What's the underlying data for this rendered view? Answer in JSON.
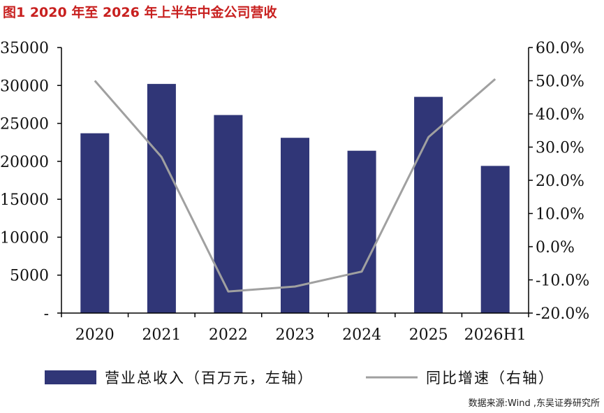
{
  "title": "图1   2020 年至 2026 年上半年中金公司营收",
  "source": "数据来源:Wind ,东吴证券研究所",
  "colors": {
    "bar": "#303677",
    "line": "#a0a0a0",
    "title": "#c8201f"
  },
  "chart_data": {
    "type": "bar+line",
    "categories": [
      "2020",
      "2021",
      "2022",
      "2023",
      "2024",
      "2025",
      "2026H1"
    ],
    "series": [
      {
        "name": "营业总收入（百万元，左轴）",
        "type": "bar",
        "axis": "left",
        "values": [
          23700,
          30200,
          26100,
          23100,
          21400,
          28500,
          19400
        ]
      },
      {
        "name": "同比增速（右轴）",
        "type": "line",
        "axis": "right",
        "values": [
          50.0,
          27.0,
          -13.5,
          -12.0,
          -7.5,
          33.0,
          50.5
        ]
      }
    ],
    "left_axis": {
      "range": [
        0,
        35000
      ],
      "ticks": [
        {
          "value": 35000,
          "label": "35000"
        },
        {
          "value": 30000,
          "label": "30000"
        },
        {
          "value": 25000,
          "label": "25000"
        },
        {
          "value": 20000,
          "label": "20000"
        },
        {
          "value": 15000,
          "label": "15000"
        },
        {
          "value": 10000,
          "label": "10000"
        },
        {
          "value": 5000,
          "label": "5000"
        },
        {
          "value": 0,
          "label": "-"
        }
      ]
    },
    "right_axis": {
      "range": [
        -20,
        60
      ],
      "ticks": [
        {
          "value": 60,
          "label": "60.0%"
        },
        {
          "value": 50,
          "label": "50.0%"
        },
        {
          "value": 40,
          "label": "40.0%"
        },
        {
          "value": 30,
          "label": "30.0%"
        },
        {
          "value": 20,
          "label": "20.0%"
        },
        {
          "value": 10,
          "label": "10.0%"
        },
        {
          "value": 0,
          "label": "0.0%"
        },
        {
          "value": -10,
          "label": "-10.0%"
        },
        {
          "value": -20,
          "label": "-20.0%"
        }
      ]
    },
    "grid": false,
    "legend_position": "bottom"
  }
}
